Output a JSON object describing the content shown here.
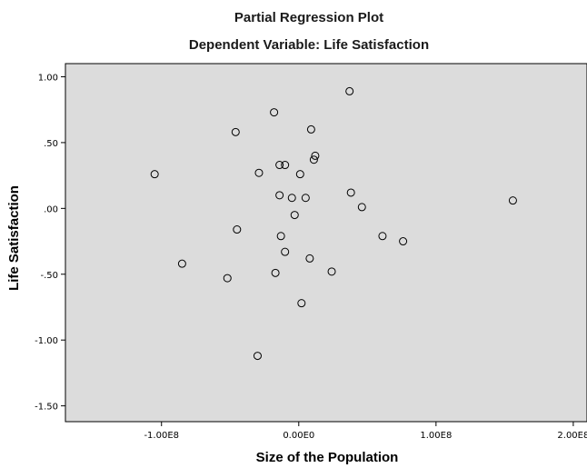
{
  "chart_data": {
    "type": "scatter",
    "title": "Partial Regression Plot",
    "subtitle": "Dependent Variable: Life Satisfaction",
    "xlabel": "Size of the Population",
    "ylabel": "Life Satisfaction",
    "xlim": [
      -170000000,
      210000000
    ],
    "ylim": [
      -1.62,
      1.1
    ],
    "x_ticks": [
      {
        "value": -100000000,
        "label": "-1.00E8"
      },
      {
        "value": 0,
        "label": "0.00E0"
      },
      {
        "value": 100000000,
        "label": "1.00E8"
      },
      {
        "value": 200000000,
        "label": "2.00E8"
      }
    ],
    "y_ticks": [
      {
        "value": 1.0,
        "label": "1.00"
      },
      {
        "value": 0.5,
        "label": ".50"
      },
      {
        "value": 0.0,
        "label": ".00"
      },
      {
        "value": -0.5,
        "label": "-.50"
      },
      {
        "value": -1.0,
        "label": "-1.00"
      },
      {
        "value": -1.5,
        "label": "-1.50"
      }
    ],
    "grid": false,
    "plot_background": "#dcdcdc",
    "marker_color": "#000000",
    "points": [
      {
        "x": -105000000,
        "y": 0.26
      },
      {
        "x": -85000000,
        "y": -0.42
      },
      {
        "x": -52000000,
        "y": -0.53
      },
      {
        "x": -46000000,
        "y": 0.58
      },
      {
        "x": -45000000,
        "y": -0.16
      },
      {
        "x": -29000000,
        "y": 0.27
      },
      {
        "x": -30000000,
        "y": -1.12
      },
      {
        "x": -18000000,
        "y": 0.73
      },
      {
        "x": -17000000,
        "y": -0.49
      },
      {
        "x": -14000000,
        "y": 0.33
      },
      {
        "x": -14000000,
        "y": 0.1
      },
      {
        "x": -13000000,
        "y": -0.21
      },
      {
        "x": -10000000,
        "y": 0.33
      },
      {
        "x": -10000000,
        "y": -0.33
      },
      {
        "x": -5000000,
        "y": 0.08
      },
      {
        "x": -3000000,
        "y": -0.05
      },
      {
        "x": 1000000,
        "y": 0.26
      },
      {
        "x": 2000000,
        "y": -0.72
      },
      {
        "x": 5000000,
        "y": 0.08
      },
      {
        "x": 8000000,
        "y": -0.38
      },
      {
        "x": 9000000,
        "y": 0.6
      },
      {
        "x": 11000000,
        "y": 0.37
      },
      {
        "x": 12000000,
        "y": 0.4
      },
      {
        "x": 24000000,
        "y": -0.48
      },
      {
        "x": 37000000,
        "y": 0.89
      },
      {
        "x": 38000000,
        "y": 0.12
      },
      {
        "x": 46000000,
        "y": 0.01
      },
      {
        "x": 61000000,
        "y": -0.21
      },
      {
        "x": 76000000,
        "y": -0.25
      },
      {
        "x": 156000000,
        "y": 0.06
      }
    ]
  }
}
